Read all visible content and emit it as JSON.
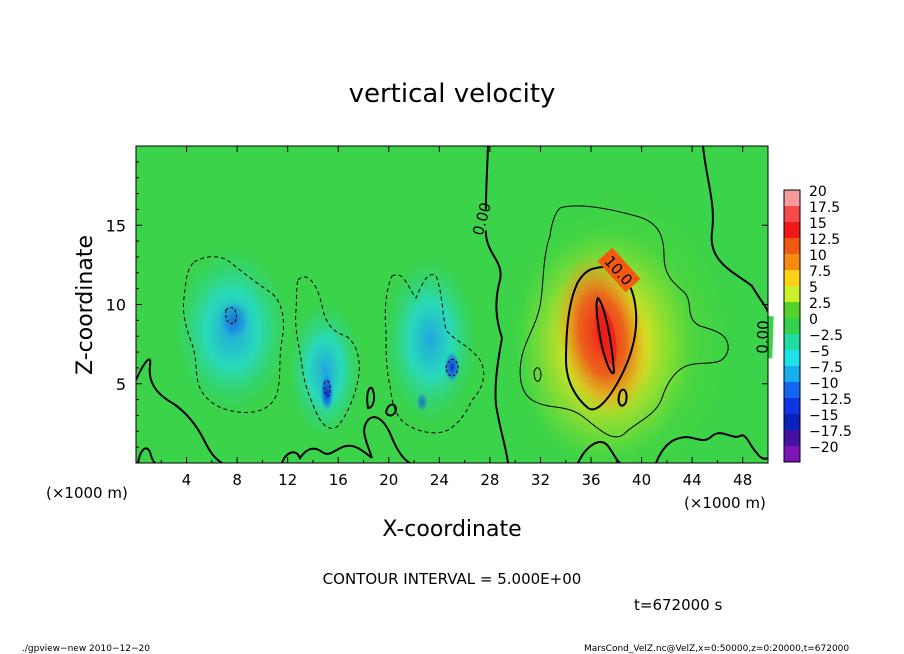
{
  "chart_data": {
    "type": "heatmap",
    "title": "vertical velocity",
    "xlabel": "X-coordinate",
    "ylabel": "Z-coordinate",
    "x_unit_label": "(×1000 m)",
    "x_unit_label_right": "(×1000 m)",
    "xlim": [
      0,
      50
    ],
    "ylim": [
      0,
      20
    ],
    "x_ticks": [
      4,
      8,
      12,
      16,
      20,
      24,
      28,
      32,
      36,
      40,
      44,
      48
    ],
    "y_ticks": [
      5,
      10,
      15
    ],
    "colorbar": {
      "levels": [
        20,
        17.5,
        15,
        12.5,
        10,
        7.5,
        5,
        2.5,
        0,
        -2.5,
        -5,
        -7.5,
        -10,
        -12.5,
        -15,
        -17.5,
        -20
      ],
      "labels": [
        "20",
        "17.5",
        "15",
        "12.5",
        "10",
        "7.5",
        "5",
        "2.5",
        "0",
        "−2.5",
        "−5",
        "−7.5",
        "−10",
        "−12.5",
        "−15",
        "−17.5",
        "−20"
      ],
      "colors": [
        "#f49a9a",
        "#f44a4a",
        "#f01818",
        "#f05a10",
        "#f58a10",
        "#ffd21a",
        "#c9f028",
        "#55d32d",
        "#2fd24a",
        "#22dca4",
        "#1ee2e6",
        "#19aef0",
        "#1566f0",
        "#0d36e0",
        "#0a22bb",
        "#4412a2",
        "#7c14b8"
      ]
    },
    "contour_labels": [
      "0.00",
      "10.0",
      "0.00"
    ],
    "annotations": {
      "contour_interval": "CONTOUR INTERVAL = 5.000E+00",
      "time": "t=672000 s",
      "footer_left": "./gpview−new  2010−12−20",
      "footer_right": "MarsCond_VelZ.nc@VelZ,x=0:50000,z=0:20000,t=672000"
    },
    "features": [
      {
        "kind": "updraft",
        "x_center": 36.5,
        "z_center": 8.5,
        "peak": 17.5
      },
      {
        "kind": "downdraft",
        "x_center": 7.5,
        "z_center": 9,
        "peak": -7.5
      },
      {
        "kind": "downdraft",
        "x_center": 15,
        "z_center": 4.5,
        "peak": -12.5
      },
      {
        "kind": "downdraft",
        "x_center": 25,
        "z_center": 6,
        "peak": -12.5
      }
    ]
  }
}
